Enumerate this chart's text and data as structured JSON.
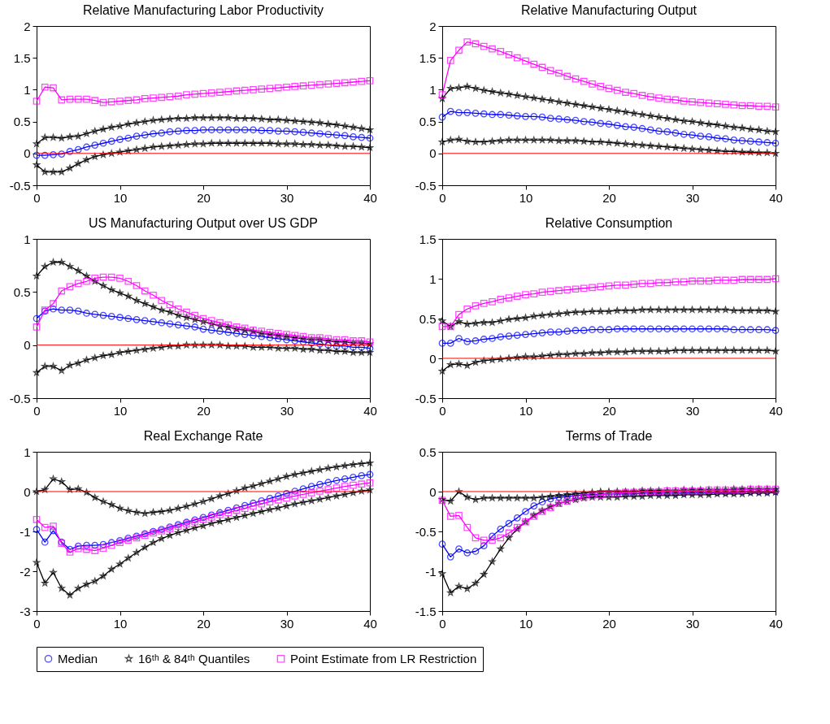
{
  "chart_data": [
    {
      "type": "line",
      "title": "Relative Manufacturing Labor Productivity",
      "xlim": [
        0,
        40
      ],
      "xticks": [
        0,
        10,
        20,
        30,
        40
      ],
      "ylim": [
        -0.5,
        2
      ],
      "yticks": [
        -0.5,
        0,
        0.5,
        1,
        1.5,
        2
      ],
      "grid": false,
      "legend": "bottom",
      "ref_lines": [
        {
          "axis": "y",
          "value": 0,
          "color": "#ff0000"
        }
      ],
      "x": [
        0,
        1,
        2,
        3,
        4,
        5,
        6,
        7,
        8,
        9,
        10,
        11,
        12,
        13,
        14,
        15,
        16,
        17,
        18,
        19,
        20,
        21,
        22,
        23,
        24,
        25,
        26,
        27,
        28,
        29,
        30,
        31,
        32,
        33,
        34,
        35,
        36,
        37,
        38,
        39,
        40
      ],
      "series": [
        {
          "name": "Median",
          "color": "#0000ff",
          "marker": "circle",
          "values": [
            -0.03,
            -0.03,
            -0.02,
            -0.01,
            0.03,
            0.06,
            0.1,
            0.13,
            0.16,
            0.19,
            0.22,
            0.24,
            0.27,
            0.29,
            0.31,
            0.32,
            0.34,
            0.35,
            0.36,
            0.36,
            0.37,
            0.37,
            0.37,
            0.37,
            0.37,
            0.37,
            0.37,
            0.36,
            0.36,
            0.35,
            0.35,
            0.34,
            0.33,
            0.32,
            0.31,
            0.3,
            0.29,
            0.28,
            0.26,
            0.25,
            0.24
          ]
        },
        {
          "name": "16ᵗʰ & 84ᵗʰ Quantiles",
          "color": "#000000",
          "marker": "star",
          "values": [
            0.15,
            0.25,
            0.25,
            0.24,
            0.26,
            0.27,
            0.31,
            0.35,
            0.38,
            0.41,
            0.43,
            0.46,
            0.48,
            0.5,
            0.52,
            0.53,
            0.54,
            0.55,
            0.55,
            0.56,
            0.56,
            0.56,
            0.56,
            0.56,
            0.55,
            0.55,
            0.55,
            0.54,
            0.53,
            0.53,
            0.52,
            0.51,
            0.5,
            0.49,
            0.48,
            0.46,
            0.45,
            0.43,
            0.41,
            0.39,
            0.37
          ]
        },
        {
          "name": null,
          "color": "#000000",
          "marker": "star",
          "values": [
            -0.18,
            -0.29,
            -0.29,
            -0.29,
            -0.23,
            -0.16,
            -0.1,
            -0.05,
            -0.02,
            0.0,
            0.02,
            0.04,
            0.06,
            0.08,
            0.1,
            0.11,
            0.12,
            0.13,
            0.14,
            0.15,
            0.15,
            0.16,
            0.16,
            0.16,
            0.16,
            0.16,
            0.16,
            0.16,
            0.16,
            0.15,
            0.15,
            0.15,
            0.14,
            0.14,
            0.13,
            0.13,
            0.12,
            0.11,
            0.11,
            0.1,
            0.09
          ]
        },
        {
          "name": "Point Estimate from LR Restriction",
          "color": "#ff00ff",
          "marker": "square",
          "values": [
            0.82,
            1.04,
            1.03,
            0.84,
            0.85,
            0.85,
            0.85,
            0.83,
            0.8,
            0.81,
            0.82,
            0.83,
            0.84,
            0.86,
            0.87,
            0.88,
            0.89,
            0.9,
            0.92,
            0.93,
            0.94,
            0.95,
            0.96,
            0.97,
            0.98,
            0.99,
            1.0,
            1.01,
            1.02,
            1.03,
            1.04,
            1.05,
            1.06,
            1.07,
            1.08,
            1.09,
            1.1,
            1.11,
            1.12,
            1.13,
            1.14
          ]
        }
      ]
    },
    {
      "type": "line",
      "title": "Relative Manufacturing Output",
      "xlim": [
        0,
        40
      ],
      "xticks": [
        0,
        10,
        20,
        30,
        40
      ],
      "ylim": [
        -0.5,
        2
      ],
      "yticks": [
        -0.5,
        0,
        0.5,
        1,
        1.5,
        2
      ],
      "grid": false,
      "legend": "bottom",
      "ref_lines": [
        {
          "axis": "y",
          "value": 0,
          "color": "#ff0000"
        }
      ],
      "x": [
        0,
        1,
        2,
        3,
        4,
        5,
        6,
        7,
        8,
        9,
        10,
        11,
        12,
        13,
        14,
        15,
        16,
        17,
        18,
        19,
        20,
        21,
        22,
        23,
        24,
        25,
        26,
        27,
        28,
        29,
        30,
        31,
        32,
        33,
        34,
        35,
        36,
        37,
        38,
        39,
        40
      ],
      "series": [
        {
          "name": "Median",
          "color": "#0000ff",
          "marker": "circle",
          "values": [
            0.57,
            0.66,
            0.64,
            0.64,
            0.63,
            0.62,
            0.61,
            0.61,
            0.6,
            0.59,
            0.58,
            0.58,
            0.57,
            0.55,
            0.54,
            0.53,
            0.52,
            0.5,
            0.49,
            0.47,
            0.46,
            0.44,
            0.42,
            0.41,
            0.39,
            0.37,
            0.35,
            0.34,
            0.32,
            0.3,
            0.29,
            0.27,
            0.26,
            0.24,
            0.23,
            0.21,
            0.2,
            0.19,
            0.18,
            0.17,
            0.16
          ]
        },
        {
          "name": "16ᵗʰ & 84ᵗʰ Quantiles",
          "color": "#000000",
          "marker": "star",
          "values": [
            0.86,
            1.02,
            1.03,
            1.05,
            1.02,
            0.99,
            0.97,
            0.95,
            0.93,
            0.91,
            0.89,
            0.87,
            0.85,
            0.83,
            0.81,
            0.79,
            0.77,
            0.75,
            0.73,
            0.71,
            0.69,
            0.67,
            0.65,
            0.63,
            0.61,
            0.59,
            0.57,
            0.55,
            0.53,
            0.51,
            0.5,
            0.48,
            0.46,
            0.45,
            0.43,
            0.41,
            0.4,
            0.38,
            0.37,
            0.35,
            0.34
          ]
        },
        {
          "name": null,
          "color": "#000000",
          "marker": "star",
          "values": [
            0.18,
            0.21,
            0.22,
            0.19,
            0.18,
            0.18,
            0.19,
            0.2,
            0.21,
            0.21,
            0.21,
            0.21,
            0.21,
            0.21,
            0.2,
            0.2,
            0.2,
            0.19,
            0.18,
            0.18,
            0.17,
            0.16,
            0.15,
            0.14,
            0.13,
            0.12,
            0.11,
            0.1,
            0.09,
            0.08,
            0.07,
            0.06,
            0.05,
            0.04,
            0.03,
            0.03,
            0.02,
            0.02,
            0.01,
            0.01,
            0.0
          ]
        },
        {
          "name": "Point Estimate from LR Restriction",
          "color": "#ff00ff",
          "marker": "square",
          "values": [
            0.92,
            1.46,
            1.62,
            1.75,
            1.72,
            1.68,
            1.64,
            1.6,
            1.55,
            1.5,
            1.45,
            1.4,
            1.35,
            1.3,
            1.26,
            1.21,
            1.17,
            1.13,
            1.09,
            1.05,
            1.02,
            0.99,
            0.96,
            0.94,
            0.91,
            0.89,
            0.87,
            0.85,
            0.84,
            0.82,
            0.81,
            0.8,
            0.79,
            0.78,
            0.77,
            0.76,
            0.75,
            0.75,
            0.74,
            0.74,
            0.73
          ]
        }
      ]
    },
    {
      "type": "line",
      "title": "US Manufacturing Output over US GDP",
      "xlim": [
        0,
        40
      ],
      "xticks": [
        0,
        10,
        20,
        30,
        40
      ],
      "ylim": [
        -0.5,
        1
      ],
      "yticks": [
        -0.5,
        0,
        0.5,
        1
      ],
      "grid": false,
      "legend": "bottom",
      "ref_lines": [
        {
          "axis": "y",
          "value": 0,
          "color": "#ff0000"
        }
      ],
      "x": [
        0,
        1,
        2,
        3,
        4,
        5,
        6,
        7,
        8,
        9,
        10,
        11,
        12,
        13,
        14,
        15,
        16,
        17,
        18,
        19,
        20,
        21,
        22,
        23,
        24,
        25,
        26,
        27,
        28,
        29,
        30,
        31,
        32,
        33,
        34,
        35,
        36,
        37,
        38,
        39,
        40
      ],
      "series": [
        {
          "name": "Median",
          "color": "#0000ff",
          "marker": "circle",
          "values": [
            0.25,
            0.32,
            0.34,
            0.33,
            0.33,
            0.32,
            0.3,
            0.29,
            0.28,
            0.27,
            0.26,
            0.25,
            0.24,
            0.23,
            0.22,
            0.21,
            0.2,
            0.19,
            0.18,
            0.17,
            0.15,
            0.14,
            0.13,
            0.12,
            0.11,
            0.1,
            0.09,
            0.08,
            0.07,
            0.06,
            0.05,
            0.04,
            0.03,
            0.02,
            0.01,
            0.0,
            -0.01,
            -0.01,
            -0.02,
            -0.02,
            -0.03
          ]
        },
        {
          "name": "16ᵗʰ & 84ᵗʰ Quantiles",
          "color": "#000000",
          "marker": "star",
          "values": [
            0.65,
            0.74,
            0.78,
            0.78,
            0.74,
            0.7,
            0.65,
            0.6,
            0.56,
            0.52,
            0.49,
            0.46,
            0.42,
            0.39,
            0.36,
            0.33,
            0.31,
            0.28,
            0.26,
            0.24,
            0.22,
            0.2,
            0.18,
            0.17,
            0.15,
            0.14,
            0.13,
            0.11,
            0.1,
            0.09,
            0.08,
            0.07,
            0.06,
            0.05,
            0.05,
            0.04,
            0.03,
            0.03,
            0.02,
            0.02,
            0.01
          ]
        },
        {
          "name": null,
          "color": "#000000",
          "marker": "star",
          "values": [
            -0.26,
            -0.2,
            -0.2,
            -0.24,
            -0.19,
            -0.17,
            -0.14,
            -0.12,
            -0.1,
            -0.09,
            -0.07,
            -0.06,
            -0.05,
            -0.04,
            -0.03,
            -0.02,
            -0.01,
            -0.01,
            0.0,
            0.0,
            0.0,
            0.0,
            0.0,
            -0.01,
            -0.01,
            -0.01,
            -0.02,
            -0.02,
            -0.02,
            -0.03,
            -0.03,
            -0.03,
            -0.04,
            -0.04,
            -0.05,
            -0.05,
            -0.06,
            -0.06,
            -0.07,
            -0.07,
            -0.07
          ]
        },
        {
          "name": "Point Estimate from LR Restriction",
          "color": "#ff00ff",
          "marker": "square",
          "values": [
            0.17,
            0.33,
            0.39,
            0.51,
            0.55,
            0.58,
            0.6,
            0.63,
            0.64,
            0.64,
            0.63,
            0.6,
            0.56,
            0.51,
            0.47,
            0.42,
            0.38,
            0.34,
            0.31,
            0.28,
            0.25,
            0.23,
            0.21,
            0.19,
            0.17,
            0.16,
            0.14,
            0.13,
            0.12,
            0.11,
            0.1,
            0.09,
            0.08,
            0.07,
            0.07,
            0.06,
            0.05,
            0.05,
            0.04,
            0.04,
            0.03
          ]
        }
      ]
    },
    {
      "type": "line",
      "title": "Relative Consumption",
      "xlim": [
        0,
        40
      ],
      "xticks": [
        0,
        10,
        20,
        30,
        40
      ],
      "ylim": [
        -0.5,
        1.5
      ],
      "yticks": [
        -0.5,
        0,
        0.5,
        1,
        1.5
      ],
      "grid": false,
      "legend": "bottom",
      "ref_lines": [
        {
          "axis": "y",
          "value": 0,
          "color": "#ff0000"
        }
      ],
      "x": [
        0,
        1,
        2,
        3,
        4,
        5,
        6,
        7,
        8,
        9,
        10,
        11,
        12,
        13,
        14,
        15,
        16,
        17,
        18,
        19,
        20,
        21,
        22,
        23,
        24,
        25,
        26,
        27,
        28,
        29,
        30,
        31,
        32,
        33,
        34,
        35,
        36,
        37,
        38,
        39,
        40
      ],
      "series": [
        {
          "name": "Median",
          "color": "#0000ff",
          "marker": "circle",
          "values": [
            0.19,
            0.19,
            0.25,
            0.21,
            0.22,
            0.24,
            0.25,
            0.27,
            0.28,
            0.29,
            0.3,
            0.31,
            0.32,
            0.33,
            0.33,
            0.34,
            0.35,
            0.35,
            0.36,
            0.36,
            0.36,
            0.37,
            0.37,
            0.37,
            0.37,
            0.37,
            0.37,
            0.37,
            0.37,
            0.37,
            0.37,
            0.37,
            0.37,
            0.37,
            0.37,
            0.36,
            0.36,
            0.36,
            0.36,
            0.36,
            0.35
          ]
        },
        {
          "name": "16ᵗʰ & 84ᵗʰ Quantiles",
          "color": "#000000",
          "marker": "star",
          "values": [
            0.47,
            0.4,
            0.46,
            0.43,
            0.44,
            0.45,
            0.45,
            0.47,
            0.49,
            0.5,
            0.51,
            0.53,
            0.54,
            0.55,
            0.56,
            0.57,
            0.58,
            0.58,
            0.59,
            0.59,
            0.59,
            0.6,
            0.6,
            0.6,
            0.61,
            0.61,
            0.61,
            0.61,
            0.61,
            0.61,
            0.61,
            0.61,
            0.61,
            0.61,
            0.61,
            0.6,
            0.6,
            0.6,
            0.6,
            0.6,
            0.59
          ]
        },
        {
          "name": null,
          "color": "#000000",
          "marker": "star",
          "values": [
            -0.16,
            -0.08,
            -0.07,
            -0.09,
            -0.05,
            -0.03,
            -0.02,
            -0.01,
            0.0,
            0.01,
            0.02,
            0.02,
            0.03,
            0.04,
            0.05,
            0.05,
            0.06,
            0.06,
            0.07,
            0.07,
            0.08,
            0.08,
            0.08,
            0.09,
            0.09,
            0.09,
            0.09,
            0.09,
            0.1,
            0.1,
            0.1,
            0.1,
            0.1,
            0.1,
            0.1,
            0.1,
            0.1,
            0.1,
            0.1,
            0.1,
            0.09
          ]
        },
        {
          "name": "Point Estimate from LR Restriction",
          "color": "#ff00ff",
          "marker": "square",
          "values": [
            0.4,
            0.4,
            0.55,
            0.62,
            0.66,
            0.69,
            0.71,
            0.74,
            0.76,
            0.78,
            0.8,
            0.81,
            0.83,
            0.84,
            0.85,
            0.86,
            0.87,
            0.88,
            0.89,
            0.9,
            0.91,
            0.92,
            0.92,
            0.93,
            0.94,
            0.94,
            0.95,
            0.95,
            0.96,
            0.96,
            0.97,
            0.97,
            0.97,
            0.98,
            0.98,
            0.98,
            0.99,
            0.99,
            0.99,
            0.99,
            1.0
          ]
        }
      ]
    },
    {
      "type": "line",
      "title": "Real Exchange Rate",
      "xlim": [
        0,
        40
      ],
      "xticks": [
        0,
        10,
        20,
        30,
        40
      ],
      "ylim": [
        -3,
        1
      ],
      "yticks": [
        -3,
        -2,
        -1,
        0,
        1
      ],
      "grid": false,
      "legend": "bottom",
      "ref_lines": [
        {
          "axis": "y",
          "value": 0,
          "color": "#ff0000"
        }
      ],
      "x": [
        0,
        1,
        2,
        3,
        4,
        5,
        6,
        7,
        8,
        9,
        10,
        11,
        12,
        13,
        14,
        15,
        16,
        17,
        18,
        19,
        20,
        21,
        22,
        23,
        24,
        25,
        26,
        27,
        28,
        29,
        30,
        31,
        32,
        33,
        34,
        35,
        36,
        37,
        38,
        39,
        40
      ],
      "series": [
        {
          "name": "Median",
          "color": "#0000ff",
          "marker": "circle",
          "values": [
            -0.95,
            -1.27,
            -0.98,
            -1.27,
            -1.45,
            -1.37,
            -1.35,
            -1.35,
            -1.33,
            -1.28,
            -1.23,
            -1.17,
            -1.12,
            -1.06,
            -1.0,
            -0.95,
            -0.89,
            -0.83,
            -0.77,
            -0.71,
            -0.65,
            -0.59,
            -0.53,
            -0.47,
            -0.41,
            -0.35,
            -0.29,
            -0.23,
            -0.17,
            -0.11,
            -0.05,
            0.01,
            0.07,
            0.13,
            0.18,
            0.23,
            0.28,
            0.32,
            0.36,
            0.4,
            0.43
          ]
        },
        {
          "name": "16ᵗʰ & 84ᵗʰ Quantiles",
          "color": "#000000",
          "marker": "star",
          "values": [
            0.0,
            0.05,
            0.32,
            0.25,
            0.05,
            0.07,
            -0.02,
            -0.15,
            -0.25,
            -0.33,
            -0.42,
            -0.48,
            -0.52,
            -0.55,
            -0.52,
            -0.5,
            -0.47,
            -0.42,
            -0.37,
            -0.31,
            -0.25,
            -0.18,
            -0.11,
            -0.05,
            0.02,
            0.09,
            0.14,
            0.2,
            0.26,
            0.32,
            0.38,
            0.43,
            0.47,
            0.51,
            0.55,
            0.59,
            0.62,
            0.65,
            0.68,
            0.7,
            0.72
          ]
        },
        {
          "name": null,
          "color": "#000000",
          "marker": "star",
          "values": [
            -1.78,
            -2.3,
            -2.03,
            -2.43,
            -2.6,
            -2.43,
            -2.33,
            -2.25,
            -2.12,
            -1.95,
            -1.82,
            -1.67,
            -1.53,
            -1.4,
            -1.28,
            -1.18,
            -1.1,
            -1.03,
            -0.97,
            -0.91,
            -0.86,
            -0.8,
            -0.75,
            -0.7,
            -0.65,
            -0.6,
            -0.55,
            -0.5,
            -0.45,
            -0.41,
            -0.36,
            -0.31,
            -0.27,
            -0.23,
            -0.19,
            -0.15,
            -0.11,
            -0.07,
            -0.03,
            0.01,
            0.04
          ]
        },
        {
          "name": "Point Estimate from LR Restriction",
          "color": "#ff00ff",
          "marker": "square",
          "values": [
            -0.7,
            -0.9,
            -0.87,
            -1.3,
            -1.52,
            -1.43,
            -1.45,
            -1.48,
            -1.42,
            -1.35,
            -1.28,
            -1.22,
            -1.16,
            -1.1,
            -1.04,
            -0.99,
            -0.93,
            -0.87,
            -0.81,
            -0.76,
            -0.7,
            -0.64,
            -0.58,
            -0.53,
            -0.47,
            -0.42,
            -0.36,
            -0.31,
            -0.26,
            -0.21,
            -0.16,
            -0.11,
            -0.07,
            -0.03,
            0.01,
            0.05,
            0.09,
            0.13,
            0.16,
            0.19,
            0.22
          ]
        }
      ]
    },
    {
      "type": "line",
      "title": "Terms of Trade",
      "xlim": [
        0,
        40
      ],
      "xticks": [
        0,
        10,
        20,
        30,
        40
      ],
      "ylim": [
        -1.5,
        0.5
      ],
      "yticks": [
        -1.5,
        -1,
        -0.5,
        0,
        0.5
      ],
      "grid": false,
      "legend": "bottom",
      "ref_lines": [
        {
          "axis": "y",
          "value": 0,
          "color": "#ff0000"
        }
      ],
      "x": [
        0,
        1,
        2,
        3,
        4,
        5,
        6,
        7,
        8,
        9,
        10,
        11,
        12,
        13,
        14,
        15,
        16,
        17,
        18,
        19,
        20,
        21,
        22,
        23,
        24,
        25,
        26,
        27,
        28,
        29,
        30,
        31,
        32,
        33,
        34,
        35,
        36,
        37,
        38,
        39,
        40
      ],
      "series": [
        {
          "name": "Median",
          "color": "#0000ff",
          "marker": "circle",
          "values": [
            -0.66,
            -0.82,
            -0.72,
            -0.77,
            -0.75,
            -0.68,
            -0.56,
            -0.47,
            -0.4,
            -0.33,
            -0.25,
            -0.18,
            -0.13,
            -0.09,
            -0.07,
            -0.06,
            -0.05,
            -0.04,
            -0.04,
            -0.03,
            -0.03,
            -0.03,
            -0.03,
            -0.03,
            -0.02,
            -0.02,
            -0.02,
            -0.02,
            -0.02,
            -0.02,
            -0.01,
            -0.01,
            -0.01,
            -0.01,
            -0.01,
            -0.01,
            0.0,
            0.0,
            0.0,
            0.0,
            0.0
          ]
        },
        {
          "name": "16ᵗʰ & 84ᵗʰ Quantiles",
          "color": "#000000",
          "marker": "star",
          "values": [
            -0.1,
            -0.12,
            0.0,
            -0.07,
            -0.1,
            -0.08,
            -0.08,
            -0.08,
            -0.08,
            -0.08,
            -0.08,
            -0.08,
            -0.07,
            -0.06,
            -0.05,
            -0.04,
            -0.03,
            -0.02,
            -0.01,
            0.0,
            0.0,
            0.0,
            0.0,
            0.0,
            0.01,
            0.01,
            0.01,
            0.01,
            0.01,
            0.02,
            0.02,
            0.02,
            0.02,
            0.02,
            0.02,
            0.03,
            0.03,
            0.03,
            0.03,
            0.03,
            0.03
          ]
        },
        {
          "name": null,
          "color": "#000000",
          "marker": "star",
          "values": [
            -1.03,
            -1.27,
            -1.19,
            -1.22,
            -1.15,
            -1.04,
            -0.88,
            -0.72,
            -0.58,
            -0.47,
            -0.38,
            -0.3,
            -0.24,
            -0.19,
            -0.15,
            -0.12,
            -0.1,
            -0.08,
            -0.07,
            -0.07,
            -0.07,
            -0.07,
            -0.06,
            -0.06,
            -0.06,
            -0.05,
            -0.05,
            -0.05,
            -0.05,
            -0.04,
            -0.04,
            -0.04,
            -0.04,
            -0.03,
            -0.03,
            -0.03,
            -0.03,
            -0.02,
            -0.02,
            -0.02,
            -0.01
          ]
        },
        {
          "name": "Point Estimate from LR Restriction",
          "color": "#ff00ff",
          "marker": "square",
          "values": [
            -0.11,
            -0.31,
            -0.3,
            -0.45,
            -0.58,
            -0.61,
            -0.61,
            -0.58,
            -0.52,
            -0.45,
            -0.38,
            -0.31,
            -0.25,
            -0.2,
            -0.15,
            -0.12,
            -0.09,
            -0.07,
            -0.05,
            -0.04,
            -0.03,
            -0.02,
            -0.01,
            -0.01,
            0.0,
            0.0,
            0.0,
            0.01,
            0.01,
            0.01,
            0.01,
            0.01,
            0.02,
            0.02,
            0.02,
            0.02,
            0.02,
            0.03,
            0.03,
            0.03,
            0.03
          ]
        }
      ]
    }
  ]
}
